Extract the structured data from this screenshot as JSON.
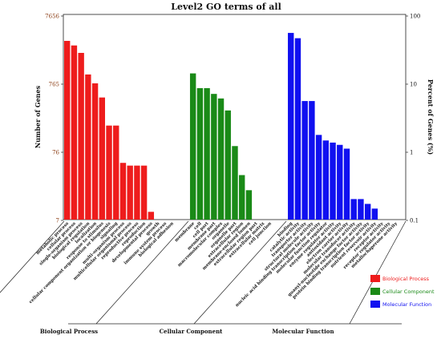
{
  "chart_data": {
    "type": "bar",
    "title": "Level2 GO terms of all",
    "ylabel_left": "Number of Genes",
    "ylabel_right": "Percent of Genes (%)",
    "y_left_ticks": [
      "7656",
      "765",
      "76",
      "7"
    ],
    "y_right_ticks": [
      "100",
      "10",
      "1",
      "0.1"
    ],
    "y_scale": "log",
    "y_right_range": [
      0.1,
      100
    ],
    "grid": false,
    "legend_position": "bottom-right",
    "groups": [
      {
        "name": "Biological Process",
        "legend": "Biological Process",
        "color": "#ee1c1c",
        "categories": [
          {
            "label": "metabolic process",
            "percent": 42
          },
          {
            "label": "cellular process",
            "percent": 36
          },
          {
            "label": "single-organism process",
            "percent": 28
          },
          {
            "label": "biological regulation",
            "percent": 13.5
          },
          {
            "label": "localization",
            "percent": 10
          },
          {
            "label": "response to stimulus",
            "percent": 6.2
          },
          {
            "label": "cellular component organization or biogenesis",
            "percent": 2.4
          },
          {
            "label": "signaling",
            "percent": 2.4
          },
          {
            "label": "multi-organism process",
            "percent": 0.68
          },
          {
            "label": "multicellular organismal process",
            "percent": 0.62
          },
          {
            "label": "reproductive process",
            "percent": 0.62
          },
          {
            "label": "reproduction",
            "percent": 0.62
          },
          {
            "label": "developmental process",
            "percent": 0.13
          },
          {
            "label": "growth",
            "percent": 0
          },
          {
            "label": "immune system process",
            "percent": 0
          },
          {
            "label": "biological adhesion",
            "percent": 0
          }
        ]
      },
      {
        "name": "Cellular Component",
        "legend": "Cellular Component",
        "color": "#1a8a17",
        "categories": [
          {
            "label": "membrane",
            "percent": 14
          },
          {
            "label": "cell",
            "percent": 8.5
          },
          {
            "label": "cell part",
            "percent": 8.5
          },
          {
            "label": "membrane part",
            "percent": 7
          },
          {
            "label": "macromolecular complex",
            "percent": 6
          },
          {
            "label": "organelle",
            "percent": 4
          },
          {
            "label": "organelle part",
            "percent": 1.2
          },
          {
            "label": "extracellular region",
            "percent": 0.45
          },
          {
            "label": "membrane-enclosed lumen",
            "percent": 0.27
          },
          {
            "label": "extracellular region part",
            "percent": 0
          },
          {
            "label": "extracellular matrix",
            "percent": 0
          },
          {
            "label": "cell junction",
            "percent": 0
          }
        ]
      },
      {
        "name": "Molecular Function",
        "legend": "Molecular Function",
        "color": "#1010f0",
        "categories": [
          {
            "label": "binding",
            "percent": 55
          },
          {
            "label": "catalytic activity",
            "percent": 46
          },
          {
            "label": "transporter activity",
            "percent": 5.5
          },
          {
            "label": "structural molecule activity",
            "percent": 5.5
          },
          {
            "label": "nucleic acid binding transcription factor activity",
            "percent": 1.75
          },
          {
            "label": "molecular function regulator",
            "percent": 1.45
          },
          {
            "label": "enzyme regulator activity",
            "percent": 1.35
          },
          {
            "label": "antioxidant activity",
            "percent": 1.25
          },
          {
            "label": "electron carrier activity",
            "percent": 1.1
          },
          {
            "label": "molecular transducer activity",
            "percent": 0.2
          },
          {
            "label": "guanyl-nucleotide exchange factor activity",
            "percent": 0.2
          },
          {
            "label": "protein binding transcription factor activity",
            "percent": 0.17
          },
          {
            "label": "nutrient reservoir activity",
            "percent": 0.145
          },
          {
            "label": "receptor activity",
            "percent": 0
          },
          {
            "label": "receptor regulator activity",
            "percent": 0
          },
          {
            "label": "metallochaperone activity",
            "percent": 0
          }
        ]
      }
    ]
  }
}
